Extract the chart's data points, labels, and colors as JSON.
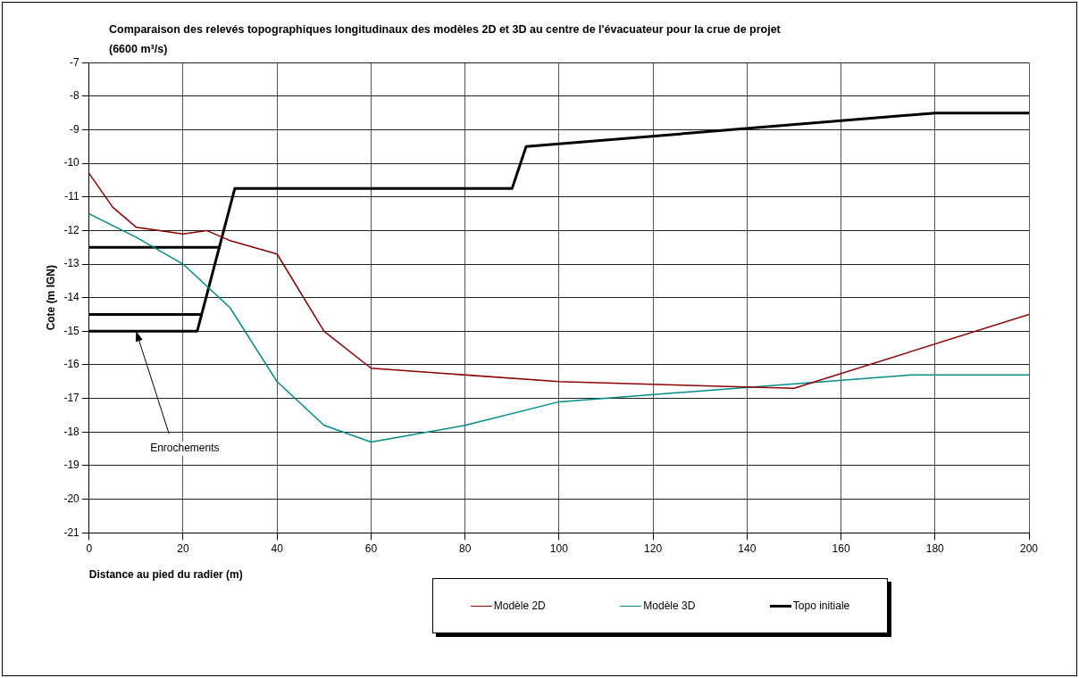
{
  "chart_data": {
    "type": "line",
    "title": "Comparaison des relevés topographiques longitudinaux des modèles 2D et 3D  au centre de l'évacuateur pour la crue de projet (6600 m³/s)",
    "xlabel": "Distance au pied du radier (m)",
    "ylabel": "Cote (m IGN)",
    "xlim": [
      0,
      200
    ],
    "xticks": [
      0,
      20,
      40,
      60,
      80,
      100,
      120,
      140,
      160,
      180,
      200
    ],
    "ylim": [
      -21,
      -7
    ],
    "yticks": [
      -21,
      -20,
      -19,
      -18,
      -17,
      -16,
      -15,
      -14,
      -13,
      -12,
      -11,
      -10,
      -9,
      -8,
      -7
    ],
    "grid": true,
    "legend": "bottom",
    "marker": "none",
    "line_style": "solid",
    "annotations": [
      {
        "text": "Enrochements",
        "x": 10,
        "y": -15
      }
    ],
    "series": [
      {
        "name": "Modèle 2D",
        "color": "#8b0000",
        "x": [
          0,
          5,
          10,
          20,
          25,
          30,
          40,
          50,
          60,
          100,
          150,
          200
        ],
        "values": [
          -10.3,
          -11.3,
          -11.9,
          -12.1,
          -12.0,
          -12.3,
          -12.7,
          -15.0,
          -16.1,
          -16.5,
          -16.7,
          -14.5
        ]
      },
      {
        "name": "Modèle 3D",
        "color": "#008b8b",
        "x": [
          0,
          10,
          20,
          30,
          40,
          50,
          60,
          80,
          100,
          175,
          200
        ],
        "values": [
          -11.5,
          -12.2,
          -13.0,
          -14.3,
          -16.5,
          -17.8,
          -18.3,
          -17.8,
          -17.1,
          -16.3,
          -16.3
        ]
      },
      {
        "name": "Topo initiale",
        "color": "#000000",
        "x": [
          0,
          23,
          31,
          90,
          93,
          180,
          200
        ],
        "values": [
          -15.0,
          -15.0,
          -10.75,
          -10.75,
          -9.5,
          -8.5,
          -8.5
        ]
      },
      {
        "color": "#000000",
        "x": [
          0,
          24
        ],
        "values": [
          -14.5,
          -14.5
        ]
      },
      {
        "color": "#000000",
        "x": [
          0,
          28
        ],
        "values": [
          -12.5,
          -12.5
        ]
      }
    ]
  }
}
